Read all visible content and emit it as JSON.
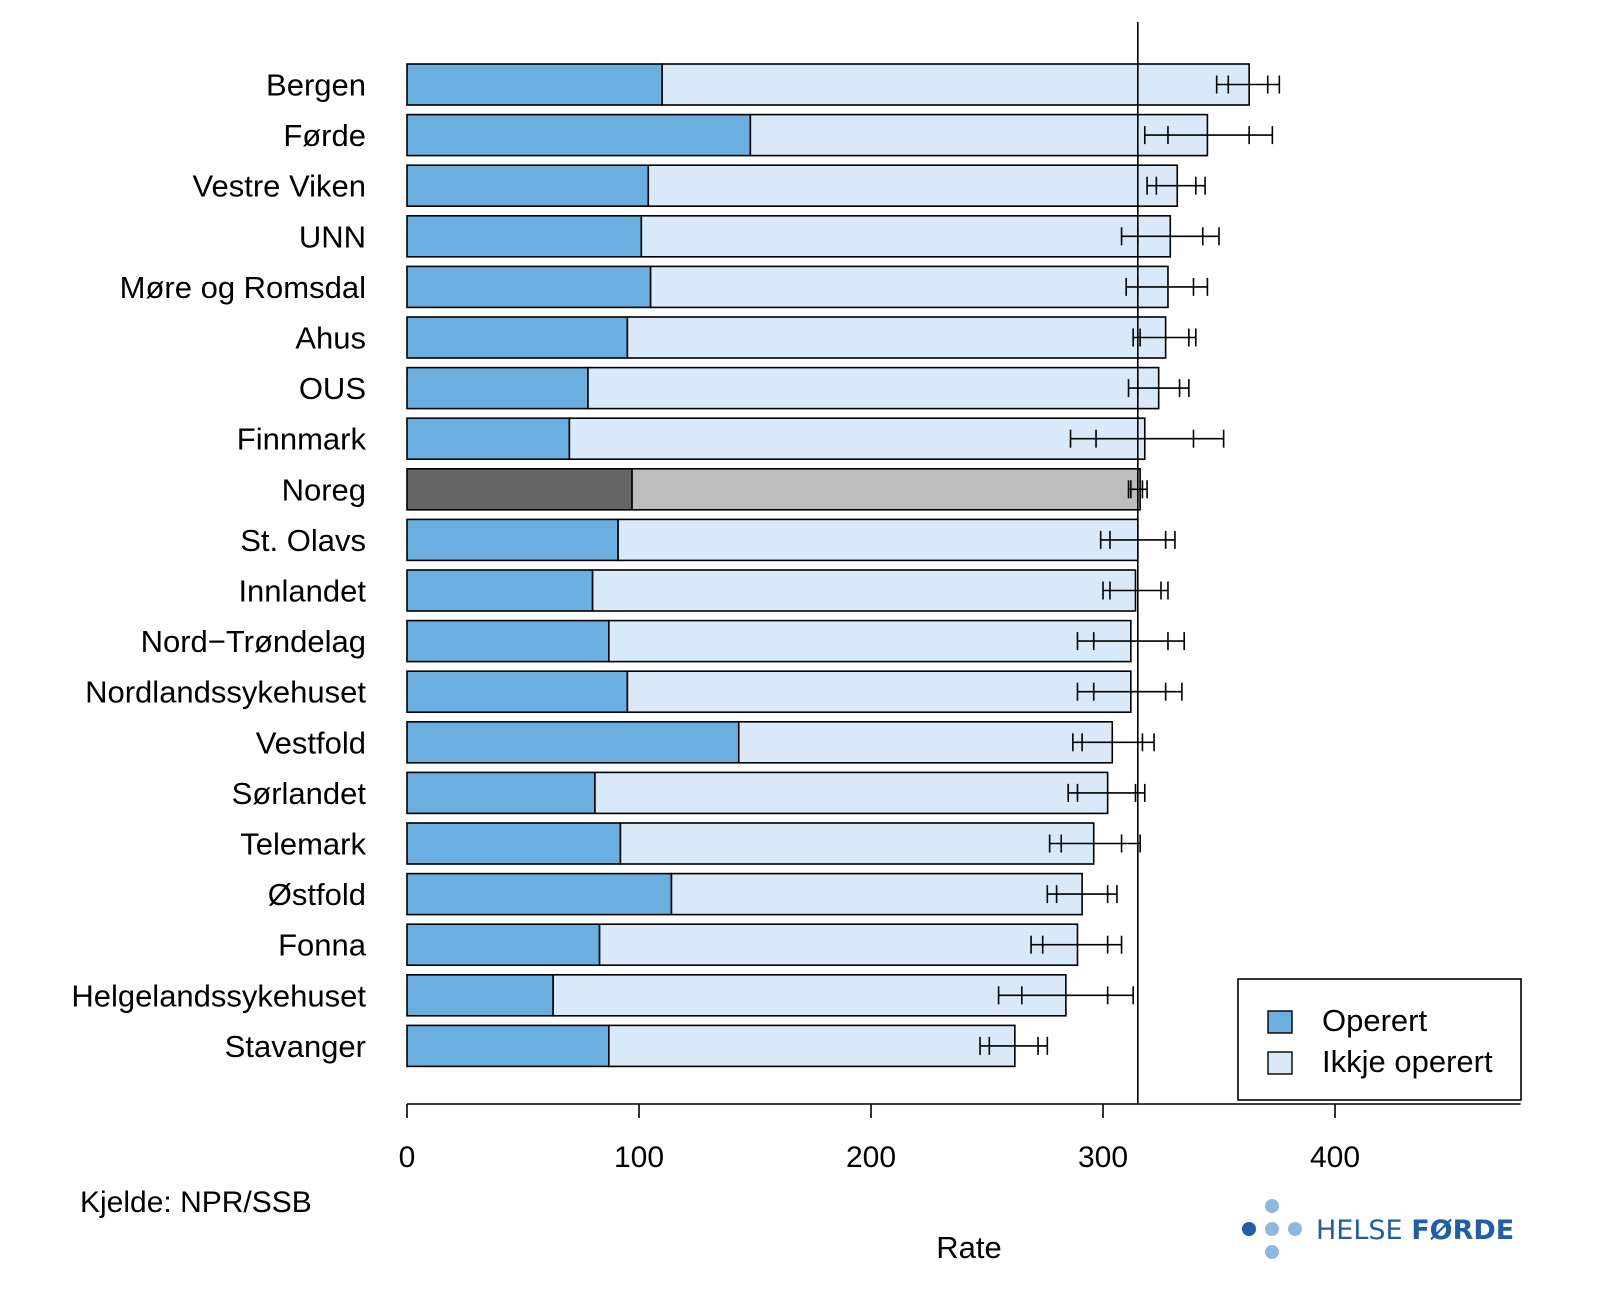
{
  "chart_data": {
    "type": "bar",
    "orientation": "horizontal",
    "stacked": true,
    "xlabel": "Rate",
    "xlim": [
      0,
      480
    ],
    "xticks": [
      0,
      100,
      200,
      300,
      400
    ],
    "reference_line": 315,
    "highlight_category": "Noreg",
    "categories": [
      "Bergen",
      "Førde",
      "Vestre Viken",
      "UNN",
      "Møre og Romsdal",
      "Ahus",
      "OUS",
      "Finnmark",
      "Noreg",
      "St. Olavs",
      "Innlandet",
      "Nord−Trøndelag",
      "Nordlandssykehuset",
      "Vestfold",
      "Sørlandet",
      "Telemark",
      "Østfold",
      "Fonna",
      "Helgelandssykehuset",
      "Stavanger"
    ],
    "series": [
      {
        "name": "Operert",
        "values": [
          110,
          148,
          104,
          101,
          105,
          95,
          78,
          70,
          97,
          91,
          80,
          87,
          95,
          143,
          81,
          92,
          114,
          83,
          63,
          87
        ]
      },
      {
        "name": "Ikkje operert",
        "values": [
          253,
          197,
          228,
          228,
          223,
          232,
          246,
          248,
          219,
          224,
          234,
          225,
          217,
          161,
          221,
          204,
          177,
          206,
          221,
          175
        ]
      }
    ],
    "ci_outer": [
      [
        349,
        376
      ],
      [
        318,
        373
      ],
      [
        319,
        344
      ],
      [
        308,
        350
      ],
      [
        310,
        345
      ],
      [
        313,
        340
      ],
      [
        311,
        337
      ],
      [
        286,
        352
      ],
      [
        311,
        319
      ],
      [
        299,
        331
      ],
      [
        300,
        328
      ],
      [
        289,
        335
      ],
      [
        289,
        334
      ],
      [
        287,
        322
      ],
      [
        285,
        318
      ],
      [
        277,
        316
      ],
      [
        276,
        306
      ],
      [
        269,
        308
      ],
      [
        255,
        313
      ],
      [
        247,
        276
      ]
    ],
    "ci_inner": [
      [
        354,
        371
      ],
      [
        328,
        363
      ],
      [
        323,
        340
      ],
      [
        315,
        343
      ],
      [
        315,
        339
      ],
      [
        316,
        337
      ],
      [
        315,
        333
      ],
      [
        297,
        339
      ],
      [
        312,
        317
      ],
      [
        303,
        327
      ],
      [
        303,
        325
      ],
      [
        296,
        328
      ],
      [
        296,
        327
      ],
      [
        291,
        317
      ],
      [
        289,
        314
      ],
      [
        282,
        308
      ],
      [
        280,
        302
      ],
      [
        274,
        302
      ],
      [
        265,
        302
      ],
      [
        251,
        272
      ]
    ],
    "colors": {
      "operert": "#6aafe0",
      "ikkje_operert": "#d9e9f7",
      "noreg_operert": "#666666",
      "noreg_ikkje": "#bdbdbd",
      "outline": "#000000"
    }
  },
  "legend": {
    "items": [
      "Operert",
      "Ikkje operert"
    ]
  },
  "source": "Kjelde: NPR/SSB",
  "logo": {
    "word1": "HELSE",
    "word2": "FØRDE",
    "color_light": "#8fb8e0",
    "color_dark": "#1f5ea8"
  }
}
